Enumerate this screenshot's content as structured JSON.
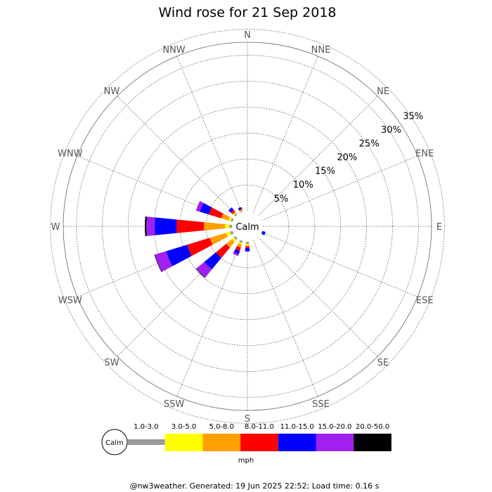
{
  "chart_data": {
    "type": "wind-rose",
    "title": "Wind rose for 21 Sep 2018",
    "directions": [
      "N",
      "NNE",
      "NE",
      "ENE",
      "E",
      "ESE",
      "SE",
      "SSE",
      "S",
      "SSW",
      "SW",
      "WSW",
      "W",
      "WNW",
      "NW",
      "NNW"
    ],
    "rings_pct": [
      5,
      10,
      15,
      20,
      25,
      30,
      35
    ],
    "ring_labels": [
      "5%",
      "10%",
      "15%",
      "20%",
      "25%",
      "30%",
      "35%"
    ],
    "calm_label": "Calm",
    "unit": "mph",
    "speed_bins": [
      {
        "range": "1.0-3.0",
        "color": "#999999"
      },
      {
        "range": "3.0-5.0",
        "color": "#ffff00"
      },
      {
        "range": "5.0-8.0",
        "color": "#ff9f00"
      },
      {
        "range": "8.0-11.0",
        "color": "#ff0000"
      },
      {
        "range": "11.0-15.0",
        "color": "#0000ff"
      },
      {
        "range": "15.0-20.0",
        "color": "#a020f0"
      },
      {
        "range": "20.0-50.0",
        "color": "#000000"
      }
    ],
    "series": [
      {
        "direction": "N",
        "values": [
          0,
          0,
          0,
          0,
          0,
          0,
          0
        ]
      },
      {
        "direction": "NNE",
        "values": [
          0,
          0,
          0,
          0,
          0,
          0,
          0
        ]
      },
      {
        "direction": "NE",
        "values": [
          0,
          0,
          0,
          0,
          0,
          0,
          0
        ]
      },
      {
        "direction": "ENE",
        "values": [
          0,
          0,
          0,
          0,
          0,
          0,
          0
        ]
      },
      {
        "direction": "E",
        "values": [
          0,
          0,
          0,
          0,
          0,
          0,
          0
        ]
      },
      {
        "direction": "ESE",
        "values": [
          0.1,
          0,
          0,
          0,
          0.6,
          0,
          0
        ]
      },
      {
        "direction": "SE",
        "values": [
          0,
          0,
          0,
          0,
          0,
          0,
          0
        ]
      },
      {
        "direction": "SSE",
        "values": [
          0,
          0,
          0,
          0,
          0,
          0,
          0
        ]
      },
      {
        "direction": "S",
        "values": [
          0.4,
          0.3,
          0.2,
          0.3,
          0.6,
          0.1,
          0
        ]
      },
      {
        "direction": "SSW",
        "values": [
          0.4,
          0.3,
          0.6,
          0.7,
          0.6,
          0.4,
          0
        ]
      },
      {
        "direction": "SW",
        "values": [
          0.4,
          0.5,
          1.4,
          2.6,
          2.9,
          2.0,
          0.1
        ]
      },
      {
        "direction": "WSW",
        "values": [
          0.5,
          0.8,
          3.3,
          4.6,
          4.2,
          2.3,
          0.1
        ]
      },
      {
        "direction": "W",
        "values": [
          0.5,
          0.8,
          4.1,
          5.3,
          4.2,
          1.6,
          0.3
        ]
      },
      {
        "direction": "WNW",
        "values": [
          0.4,
          0.4,
          1.5,
          2.5,
          1.8,
          0.8,
          0
        ]
      },
      {
        "direction": "NW",
        "values": [
          0.3,
          0.2,
          0.2,
          0.5,
          0.5,
          0.1,
          0
        ]
      },
      {
        "direction": "NNW",
        "values": [
          0.2,
          0.1,
          0.1,
          0.2,
          0.3,
          0,
          0
        ]
      }
    ]
  },
  "footer": "@nw3weather. Generated: 19 Jun 2025 22:52; Load time: 0.16 s"
}
